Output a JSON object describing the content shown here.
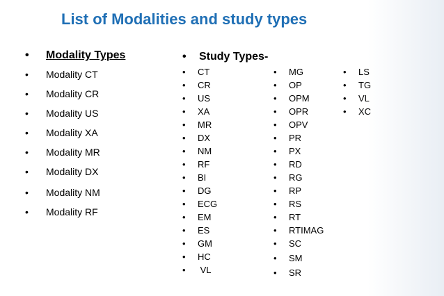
{
  "title": "List of Modalities and study types",
  "modality": {
    "heading": "Modality Types",
    "items": [
      "Modality CT",
      "Modality CR",
      "Modality US",
      "Modality XA",
      "Modality MR",
      "Modality DX",
      "Modality NM",
      "Modality RF"
    ]
  },
  "study": {
    "heading": "Study Types-",
    "col1": [
      "CT",
      "CR",
      "US",
      "XA",
      "MR",
      "DX",
      "NM",
      "RF",
      "BI",
      "DG",
      "ECG",
      "EM",
      "ES",
      "GM",
      "HC",
      " VL"
    ],
    "col2": [
      "MG",
      "OP",
      "OPM",
      "OPR",
      "OPV",
      "PR",
      "PX",
      "RD",
      "RG",
      "RP",
      "RS",
      "RT",
      "RTIMAG",
      "SC",
      "SM",
      "SR"
    ],
    "col3": [
      "LS",
      "TG",
      "VL",
      "XC"
    ]
  }
}
